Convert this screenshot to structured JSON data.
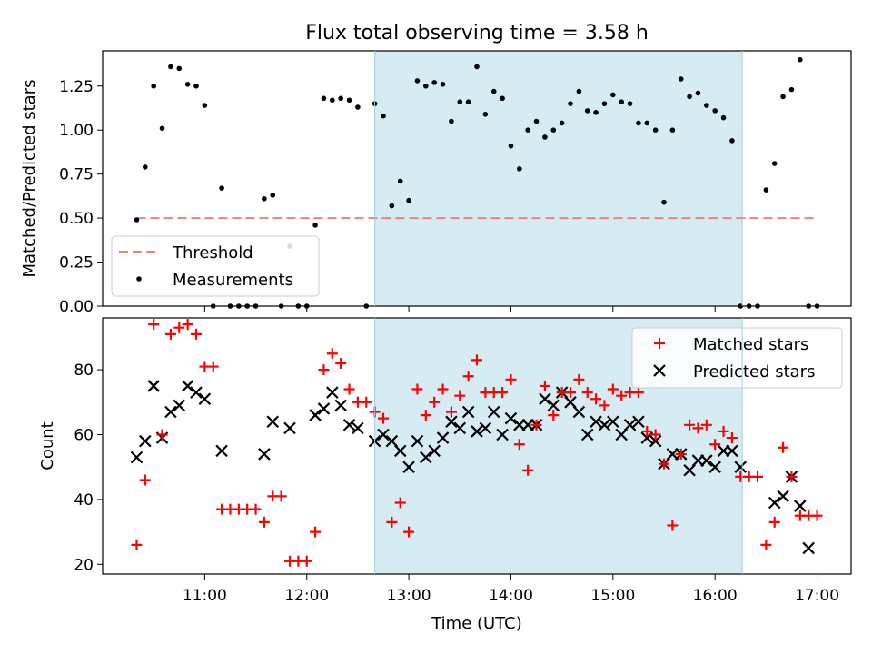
{
  "title": "Flux total observing time = 3.58 h",
  "colors": {
    "threshold": "#f08080",
    "measurements": "#000000",
    "matched": "#ff0000",
    "predicted": "#000000",
    "shade": "#add8e6"
  },
  "chart_data": [
    {
      "type": "scatter",
      "ylabel": "Matched/Predicted stars",
      "ylim": [
        0,
        1.45
      ],
      "yticks": [
        0.0,
        0.25,
        0.5,
        0.75,
        1.0,
        1.25
      ],
      "yticklabels": [
        "0.00",
        "0.25",
        "0.50",
        "0.75",
        "1.00",
        "1.25"
      ],
      "shaded_region": {
        "x0": "12:40",
        "x1": "16:16"
      },
      "legend": {
        "position": "lower-left",
        "entries": [
          "Threshold",
          "Measurements"
        ]
      },
      "series": [
        {
          "name": "Threshold",
          "kind": "dashed-line",
          "x": [
            "10:20",
            "17:00"
          ],
          "y": [
            0.5,
            0.5
          ]
        },
        {
          "name": "Measurements",
          "kind": "dot",
          "x": [
            "10:20",
            "10:25",
            "10:30",
            "10:35",
            "10:40",
            "10:45",
            "10:50",
            "10:55",
            "11:00",
            "11:05",
            "11:10",
            "11:15",
            "11:20",
            "11:25",
            "11:30",
            "11:35",
            "11:40",
            "11:45",
            "11:50",
            "11:55",
            "12:00",
            "12:05",
            "12:10",
            "12:15",
            "12:20",
            "12:25",
            "12:30",
            "12:35",
            "12:40",
            "12:45",
            "12:50",
            "12:55",
            "13:00",
            "13:05",
            "13:10",
            "13:15",
            "13:20",
            "13:25",
            "13:30",
            "13:35",
            "13:40",
            "13:45",
            "13:50",
            "13:55",
            "14:00",
            "14:05",
            "14:10",
            "14:15",
            "14:20",
            "14:25",
            "14:30",
            "14:35",
            "14:40",
            "14:45",
            "14:50",
            "14:55",
            "15:00",
            "15:05",
            "15:10",
            "15:15",
            "15:20",
            "15:25",
            "15:30",
            "15:35",
            "15:40",
            "15:45",
            "15:50",
            "15:55",
            "16:00",
            "16:05",
            "16:10",
            "16:15",
            "16:20",
            "16:25",
            "16:30",
            "16:35",
            "16:40",
            "16:45",
            "16:50",
            "16:55",
            "17:00"
          ],
          "y": [
            0.49,
            0.79,
            1.25,
            1.01,
            1.36,
            1.35,
            1.26,
            1.25,
            1.14,
            0.0,
            0.67,
            0.0,
            0.0,
            0.0,
            0.0,
            0.61,
            0.63,
            0.0,
            0.34,
            0.0,
            0.0,
            0.46,
            1.18,
            1.17,
            1.18,
            1.17,
            1.13,
            0.0,
            1.15,
            1.08,
            0.57,
            0.71,
            0.6,
            1.28,
            1.25,
            1.27,
            1.26,
            1.05,
            1.16,
            1.16,
            1.36,
            1.09,
            1.22,
            1.18,
            0.91,
            0.78,
            1.0,
            1.05,
            0.96,
            1.0,
            1.04,
            1.15,
            1.22,
            1.11,
            1.1,
            1.15,
            1.2,
            1.16,
            1.15,
            1.04,
            1.04,
            1.0,
            0.59,
            1.0,
            1.29,
            1.19,
            1.21,
            1.14,
            1.11,
            1.07,
            0.94,
            0.0,
            0.0,
            0.0,
            0.66,
            0.81,
            1.19,
            1.23,
            1.4,
            0.0,
            0.0
          ]
        }
      ]
    },
    {
      "type": "scatter",
      "xlabel": "Time (UTC)",
      "ylabel": "Count",
      "ylim": [
        17,
        96
      ],
      "yticks": [
        20,
        40,
        60,
        80
      ],
      "yticklabels": [
        "20",
        "40",
        "60",
        "80"
      ],
      "xticks": [
        "11:00",
        "12:00",
        "13:00",
        "14:00",
        "15:00",
        "16:00",
        "17:00"
      ],
      "xlim": [
        "10:00",
        "17:20"
      ],
      "shaded_region": {
        "x0": "12:40",
        "x1": "16:16"
      },
      "legend": {
        "position": "upper-right",
        "entries": [
          "Matched stars",
          "Predicted stars"
        ]
      },
      "series": [
        {
          "name": "Matched stars",
          "kind": "plus",
          "x": [
            "10:20",
            "10:25",
            "10:30",
            "10:35",
            "10:40",
            "10:45",
            "10:50",
            "10:55",
            "11:00",
            "11:05",
            "11:10",
            "11:15",
            "11:20",
            "11:25",
            "11:30",
            "11:35",
            "11:40",
            "11:45",
            "11:50",
            "11:55",
            "12:00",
            "12:05",
            "12:10",
            "12:15",
            "12:20",
            "12:25",
            "12:30",
            "12:35",
            "12:40",
            "12:45",
            "12:50",
            "12:55",
            "13:00",
            "13:05",
            "13:10",
            "13:15",
            "13:20",
            "13:25",
            "13:30",
            "13:35",
            "13:40",
            "13:45",
            "13:50",
            "13:55",
            "14:00",
            "14:05",
            "14:10",
            "14:15",
            "14:20",
            "14:25",
            "14:30",
            "14:35",
            "14:40",
            "14:45",
            "14:50",
            "14:55",
            "15:00",
            "15:05",
            "15:10",
            "15:15",
            "15:20",
            "15:25",
            "15:30",
            "15:35",
            "15:40",
            "15:45",
            "15:50",
            "15:55",
            "16:00",
            "16:05",
            "16:10",
            "16:15",
            "16:20",
            "16:25",
            "16:30",
            "16:35",
            "16:40",
            "16:45",
            "16:50",
            "16:55",
            "17:00"
          ],
          "y": [
            26,
            46,
            94,
            60,
            91,
            93,
            94,
            91,
            81,
            81,
            37,
            37,
            37,
            37,
            37,
            33,
            41,
            41,
            21,
            21,
            21,
            30,
            80,
            85,
            82,
            74,
            70,
            70,
            67,
            65,
            33,
            39,
            30,
            74,
            66,
            70,
            74,
            67,
            72,
            78,
            83,
            73,
            73,
            73,
            77,
            57,
            49,
            63,
            75,
            66,
            73,
            73,
            77,
            73,
            71,
            69,
            74,
            72,
            73,
            73,
            61,
            60,
            51,
            32,
            54,
            63,
            62,
            63,
            57,
            61,
            59,
            47,
            47,
            47,
            26,
            33,
            56,
            47,
            35,
            35,
            35
          ]
        },
        {
          "name": "Predicted stars",
          "kind": "x",
          "x": [
            "10:20",
            "10:25",
            "10:30",
            "10:35",
            "10:40",
            "10:45",
            "10:50",
            "10:55",
            "11:00",
            "11:10",
            "11:35",
            "11:40",
            "11:50",
            "12:05",
            "12:10",
            "12:15",
            "12:20",
            "12:25",
            "12:30",
            "12:40",
            "12:45",
            "12:50",
            "12:55",
            "13:00",
            "13:05",
            "13:10",
            "13:15",
            "13:20",
            "13:25",
            "13:30",
            "13:35",
            "13:40",
            "13:45",
            "13:50",
            "13:55",
            "14:00",
            "14:05",
            "14:10",
            "14:15",
            "14:20",
            "14:25",
            "14:30",
            "14:35",
            "14:40",
            "14:45",
            "14:50",
            "14:55",
            "15:00",
            "15:05",
            "15:10",
            "15:15",
            "15:20",
            "15:25",
            "15:30",
            "15:35",
            "15:40",
            "15:45",
            "15:50",
            "15:55",
            "16:00",
            "16:05",
            "16:10",
            "16:15",
            "16:35",
            "16:40",
            "16:45",
            "16:50",
            "16:55"
          ],
          "y": [
            53,
            58,
            75,
            59,
            67,
            69,
            75,
            73,
            71,
            55,
            54,
            64,
            62,
            66,
            68,
            73,
            69,
            63,
            62,
            58,
            60,
            58,
            55,
            50,
            58,
            53,
            55,
            59,
            64,
            62,
            67,
            61,
            62,
            67,
            60,
            65,
            63,
            63,
            63,
            71,
            69,
            73,
            70,
            67,
            60,
            64,
            63,
            64,
            60,
            63,
            64,
            59,
            58,
            51,
            54,
            54,
            49,
            52,
            52,
            50,
            55,
            55,
            50,
            39,
            41,
            47,
            38,
            25
          ]
        }
      ]
    }
  ]
}
